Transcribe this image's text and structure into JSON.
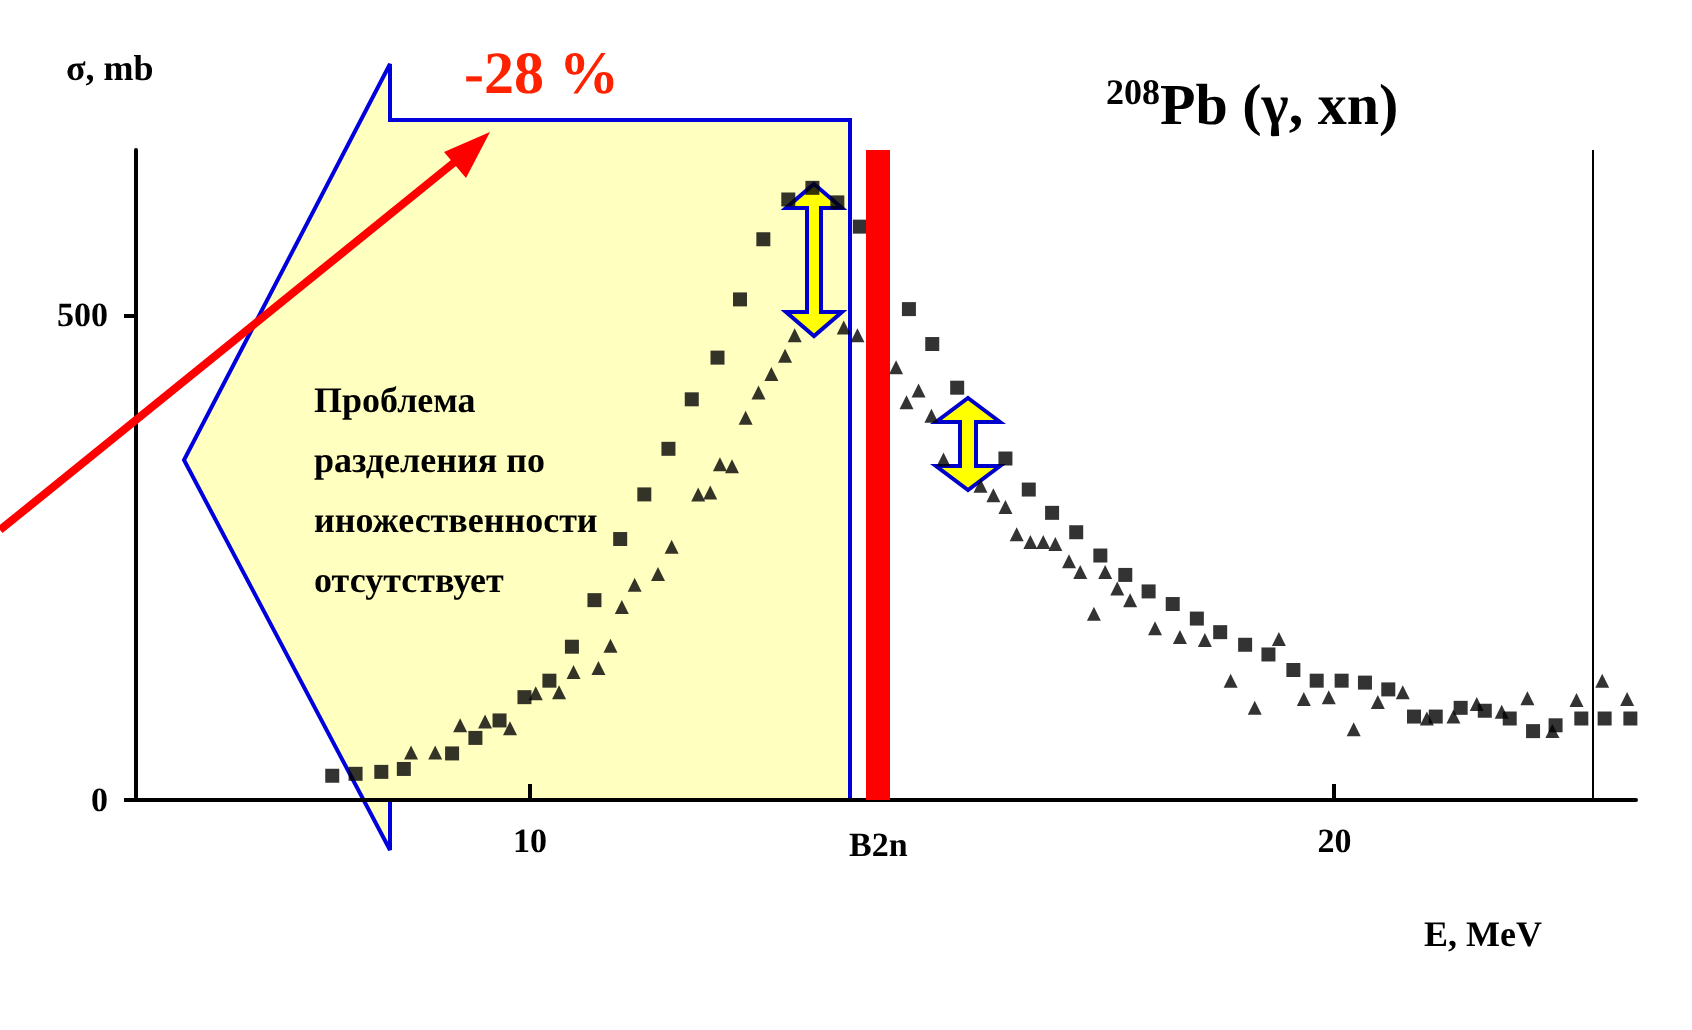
{
  "chart_data": {
    "type": "scatter",
    "title": "$^{208}$Pb (γ, xn)",
    "xlabel": "E, MeV",
    "ylabel": "σ, mb",
    "annotations": [
      "-28 %",
      "Проблема\nразделения по\nиножественности\nотсутствует"
    ],
    "xlim": [
      5.1,
      23.75
    ],
    "ylim": [
      0,
      670
    ],
    "xticks": [
      10,
      20
    ],
    "yticks": [
      0,
      500
    ],
    "grid": false,
    "ref_lines": [
      {
        "axis": "x",
        "value": 14.33,
        "label": "B2n",
        "color": "#ff0000"
      },
      {
        "axis": "x",
        "value": 23.2,
        "color": "#000000"
      }
    ],
    "series": [
      {
        "color": "#000000",
        "marker": "square",
        "x": [
          7.54,
          7.83,
          8.15,
          8.43,
          9.03,
          9.32,
          9.62,
          9.93,
          10.24,
          10.52,
          10.8,
          11.12,
          11.42,
          11.72,
          12.01,
          12.33,
          12.61,
          12.9,
          13.21,
          13.51,
          13.82,
          14.1,
          14.71,
          15.0,
          15.31,
          15.91,
          16.2,
          16.49,
          16.79,
          17.09,
          17.4,
          17.69,
          17.99,
          18.29,
          18.58,
          18.89,
          19.18,
          19.49,
          19.78,
          20.09,
          20.38,
          20.67,
          20.99,
          21.26,
          21.57,
          21.87,
          22.18,
          22.47,
          22.75,
          23.07,
          23.36,
          23.68
        ],
        "values": [
          25,
          27,
          29,
          32,
          48,
          64,
          82,
          106,
          123,
          158,
          206,
          269,
          315,
          362,
          413,
          456,
          516,
          578,
          619,
          631,
          616,
          591,
          506,
          470,
          425,
          352,
          320,
          296,
          276,
          252,
          232,
          215,
          202,
          187,
          173,
          160,
          150,
          134,
          123,
          123,
          121,
          114,
          86,
          86,
          95,
          92,
          84,
          71,
          77,
          84,
          84,
          84
        ]
      },
      {
        "color": "#000000",
        "marker": "triangle",
        "x": [
          8.52,
          8.82,
          9.13,
          9.44,
          9.75,
          10.07,
          10.36,
          10.54,
          10.85,
          11.0,
          11.14,
          11.3,
          11.59,
          11.76,
          12.09,
          12.24,
          12.36,
          12.51,
          12.68,
          12.84,
          13.0,
          13.17,
          13.29,
          13.9,
          14.07,
          14.55,
          14.68,
          14.83,
          14.99,
          15.14,
          15.6,
          15.76,
          15.91,
          16.05,
          16.22,
          16.38,
          16.53,
          16.7,
          16.84,
          17.01,
          17.15,
          17.3,
          17.46,
          17.77,
          18.08,
          18.39,
          18.71,
          19.01,
          19.31,
          19.62,
          19.93,
          20.24,
          20.54,
          20.85,
          21.15,
          21.48,
          21.77,
          22.08,
          22.4,
          22.71,
          23.01,
          23.33,
          23.64
        ],
        "values": [
          49,
          49,
          77,
          81,
          74,
          110,
          111,
          132,
          136,
          159,
          199,
          222,
          233,
          261,
          315,
          317,
          346,
          344,
          394,
          420,
          439,
          458,
          479,
          487,
          479,
          446,
          410,
          422,
          396,
          351,
          324,
          314,
          302,
          274,
          266,
          266,
          264,
          246,
          235,
          192,
          235,
          218,
          206,
          177,
          168,
          165,
          123,
          95,
          166,
          104,
          106,
          73,
          101,
          111,
          84,
          86,
          99,
          91,
          105,
          71,
          103,
          123,
          104
        ]
      }
    ]
  }
}
